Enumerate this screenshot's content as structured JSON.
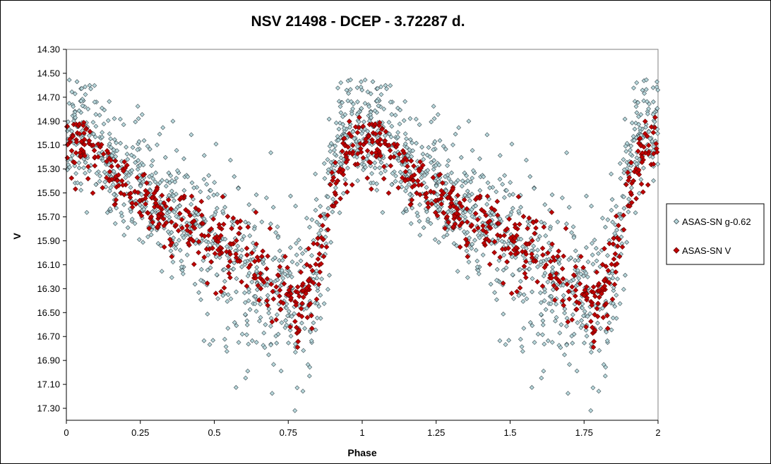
{
  "chart_data": {
    "type": "scatter",
    "title": "NSV 21498 - DCEP - 3.72287 d.",
    "xlabel": "Phase",
    "ylabel": "V",
    "xlim": [
      0,
      2
    ],
    "ylim": [
      17.4,
      14.3
    ],
    "y_inverted": true,
    "x_ticks": [
      "0",
      "0.25",
      "0.5",
      "0.75",
      "1",
      "1.25",
      "1.5",
      "1.75",
      "2"
    ],
    "y_ticks": [
      "14.30",
      "14.50",
      "14.70",
      "14.90",
      "15.10",
      "15.30",
      "15.50",
      "15.70",
      "15.90",
      "16.10",
      "16.30",
      "16.50",
      "16.70",
      "16.90",
      "17.10",
      "17.30"
    ],
    "grid": false,
    "legend_position": "right",
    "series": [
      {
        "name": "ASAS-SN g-0.62",
        "marker": "diamond",
        "color": "#B8D8DC",
        "edge_color": "#3A4A50",
        "curve_phase": [
          0,
          0.05,
          0.1,
          0.2,
          0.3,
          0.4,
          0.5,
          0.6,
          0.7,
          0.78,
          0.84,
          0.88,
          0.92,
          0.96,
          1.0
        ],
        "curve_mag": [
          14.92,
          15.0,
          15.12,
          15.35,
          15.55,
          15.72,
          15.92,
          16.12,
          16.3,
          16.5,
          16.2,
          15.6,
          15.05,
          14.9,
          14.92
        ],
        "scatter_sigma": 0.25,
        "points_per_cycle": 900
      },
      {
        "name": "ASAS-SN V",
        "marker": "diamond",
        "color": "#C00000",
        "edge_color": "#600000",
        "curve_phase": [
          0,
          0.05,
          0.1,
          0.2,
          0.3,
          0.4,
          0.5,
          0.6,
          0.7,
          0.78,
          0.84,
          0.88,
          0.92,
          0.96,
          1.0
        ],
        "curve_mag": [
          15.05,
          15.1,
          15.2,
          15.45,
          15.62,
          15.78,
          15.9,
          16.05,
          16.3,
          16.52,
          16.15,
          15.75,
          15.35,
          15.1,
          15.05
        ],
        "scatter_sigma": 0.13,
        "points_per_cycle": 420
      }
    ]
  }
}
